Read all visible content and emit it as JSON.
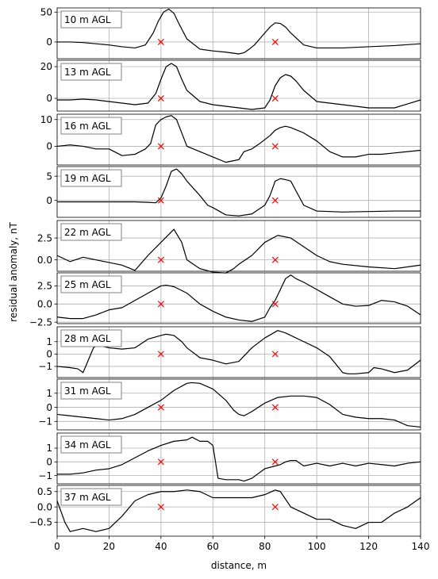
{
  "chart_data": {
    "type": "line",
    "xlabel": "distance, m",
    "ylabel": "residual anomaly, nT",
    "xlim": [
      0,
      140
    ],
    "x_ticks": [
      0,
      20,
      40,
      60,
      80,
      100,
      120,
      140
    ],
    "grid": true,
    "line_color": "#000000",
    "marker_color": "#ff0000",
    "markers_x": [
      40,
      84
    ],
    "panels": [
      {
        "label": "10 m AGL",
        "ylim": [
          -28,
          57
        ],
        "yticks": [
          0,
          50
        ],
        "x": [
          0,
          5,
          10,
          15,
          20,
          25,
          30,
          34,
          37,
          39,
          41,
          43,
          45,
          47,
          50,
          55,
          60,
          65,
          70,
          72,
          74,
          76,
          78,
          80,
          82,
          84,
          86,
          88,
          90,
          95,
          100,
          110,
          120,
          130,
          140
        ],
        "y": [
          0,
          0,
          -1,
          -3,
          -5,
          -8,
          -10,
          -5,
          15,
          35,
          50,
          55,
          48,
          30,
          5,
          -12,
          -15,
          -17,
          -20,
          -18,
          -12,
          -5,
          5,
          15,
          25,
          32,
          31,
          25,
          15,
          -5,
          -10,
          -10,
          -8,
          -6,
          -3
        ]
      },
      {
        "label": "13 m AGL",
        "ylim": [
          -8,
          24
        ],
        "yticks": [
          0,
          20
        ],
        "x": [
          0,
          5,
          10,
          15,
          20,
          25,
          30,
          35,
          38,
          40,
          42,
          44,
          46,
          48,
          50,
          55,
          60,
          65,
          70,
          75,
          80,
          82,
          84,
          86,
          88,
          90,
          92,
          95,
          100,
          110,
          120,
          130,
          140
        ],
        "y": [
          -1,
          -1,
          -0.5,
          -1,
          -2,
          -3,
          -4,
          -3,
          3,
          12,
          20,
          22,
          20,
          12,
          5,
          -2,
          -4,
          -5,
          -6,
          -7,
          -6,
          -1,
          8,
          13,
          15,
          14,
          11,
          5,
          -2,
          -4,
          -6,
          -6,
          -1
        ]
      },
      {
        "label": "16 m AGL",
        "ylim": [
          -7,
          12
        ],
        "yticks": [
          0,
          10
        ],
        "x": [
          0,
          5,
          10,
          15,
          20,
          25,
          30,
          34,
          36,
          38,
          40,
          42,
          44,
          46,
          48,
          50,
          55,
          60,
          65,
          70,
          72,
          75,
          78,
          82,
          84,
          86,
          88,
          90,
          95,
          100,
          105,
          110,
          115,
          120,
          125,
          130,
          140
        ],
        "y": [
          0,
          0.5,
          0,
          -1,
          -1,
          -3.5,
          -3,
          -1,
          1,
          8,
          10,
          11,
          11.5,
          10,
          5,
          0,
          -2,
          -4,
          -6,
          -5,
          -2,
          -1,
          1,
          4,
          6,
          7,
          7.5,
          7,
          5,
          2,
          -2,
          -4,
          -4,
          -3,
          -3,
          -2.5,
          -1.5
        ]
      },
      {
        "label": "19 m AGL",
        "ylim": [
          -3.5,
          7
        ],
        "yticks": [
          0,
          5
        ],
        "x": [
          0,
          10,
          20,
          30,
          35,
          38,
          40,
          42,
          44,
          46,
          48,
          50,
          55,
          58,
          60,
          65,
          70,
          75,
          80,
          82,
          84,
          86,
          88,
          90,
          95,
          100,
          110,
          120,
          130,
          140
        ],
        "y": [
          -0.3,
          -0.3,
          -0.3,
          -0.3,
          -0.4,
          -0.5,
          0.5,
          3,
          6,
          6.5,
          5.5,
          4,
          1,
          -1,
          -1.5,
          -3,
          -3.2,
          -2.8,
          -1,
          1,
          4,
          4.5,
          4.3,
          4,
          -1,
          -2.2,
          -2.4,
          -2.3,
          -2.2,
          -2.2
        ]
      },
      {
        "label": "22 m AGL",
        "ylim": [
          -1.3,
          4.5
        ],
        "yticks": [
          -2.5,
          0,
          2.5
        ],
        "ytick_labels": [
          "",
          "0.0",
          "2.5"
        ],
        "x": [
          0,
          5,
          10,
          15,
          20,
          25,
          30,
          35,
          40,
          45,
          48,
          50,
          55,
          60,
          65,
          68,
          70,
          75,
          80,
          85,
          90,
          95,
          100,
          105,
          110,
          120,
          130,
          140
        ],
        "y": [
          0.5,
          -0.2,
          0.3,
          0,
          -0.3,
          -0.6,
          -1.2,
          0.5,
          2,
          3.5,
          2,
          0,
          -1,
          -1.4,
          -1.5,
          -1,
          -0.5,
          0.5,
          2,
          2.8,
          2.5,
          1.5,
          0.5,
          -0.2,
          -0.5,
          -0.8,
          -1,
          -0.6
        ]
      },
      {
        "label": "25 m AGL",
        "ylim": [
          -2.7,
          4.3
        ],
        "yticks": [
          -2.5,
          0,
          2.5
        ],
        "ytick_labels": [
          "−2.5",
          "0.0",
          "2.5"
        ],
        "x": [
          0,
          5,
          10,
          15,
          20,
          25,
          30,
          35,
          40,
          42,
          45,
          50,
          55,
          60,
          65,
          70,
          75,
          80,
          82,
          84,
          86,
          88,
          90,
          92,
          95,
          100,
          105,
          110,
          115,
          120,
          125,
          130,
          135,
          140
        ],
        "y": [
          -1.8,
          -2,
          -2,
          -1.5,
          -0.8,
          -0.5,
          0.5,
          1.5,
          2.5,
          2.6,
          2.4,
          1.5,
          0,
          -1,
          -1.8,
          -2.2,
          -2.4,
          -1.8,
          -0.5,
          0.5,
          2,
          3.5,
          4,
          3.5,
          3,
          2,
          1,
          0,
          -0.3,
          -0.2,
          0.5,
          0.3,
          -0.3,
          -1.5
        ]
      },
      {
        "label": "28 m AGL",
        "ylim": [
          -1.9,
          2.2
        ],
        "yticks": [
          -1,
          0,
          1
        ],
        "x": [
          0,
          5,
          8,
          10,
          12,
          14,
          16,
          18,
          20,
          25,
          30,
          35,
          40,
          42,
          45,
          48,
          50,
          55,
          60,
          65,
          70,
          75,
          80,
          85,
          88,
          90,
          95,
          100,
          105,
          110,
          112,
          115,
          120,
          122,
          125,
          130,
          135,
          140
        ],
        "y": [
          -1,
          -1.1,
          -1.2,
          -1.5,
          -0.5,
          0.5,
          0.8,
          0.6,
          0.5,
          0.4,
          0.5,
          1.2,
          1.5,
          1.6,
          1.5,
          1,
          0.5,
          -0.3,
          -0.5,
          -0.8,
          -0.6,
          0.5,
          1.3,
          1.9,
          1.7,
          1.5,
          1,
          0.5,
          -0.2,
          -1.5,
          -1.6,
          -1.6,
          -1.5,
          -1.1,
          -1.2,
          -1.5,
          -1.3,
          -0.5
        ]
      },
      {
        "label": "31 m AGL",
        "ylim": [
          -1.6,
          2.0
        ],
        "yticks": [
          -1,
          0,
          1
        ],
        "x": [
          0,
          5,
          10,
          15,
          20,
          25,
          30,
          35,
          40,
          45,
          50,
          52,
          55,
          60,
          65,
          68,
          70,
          72,
          75,
          80,
          85,
          90,
          95,
          100,
          105,
          110,
          115,
          120,
          125,
          130,
          135,
          140
        ],
        "y": [
          -0.5,
          -0.6,
          -0.7,
          -0.8,
          -0.9,
          -0.8,
          -0.5,
          0,
          0.5,
          1.2,
          1.7,
          1.75,
          1.7,
          1.3,
          0.5,
          -0.2,
          -0.5,
          -0.6,
          -0.3,
          0.3,
          0.7,
          0.8,
          0.8,
          0.7,
          0.2,
          -0.5,
          -0.7,
          -0.8,
          -0.8,
          -0.9,
          -1.3,
          -1.4
        ]
      },
      {
        "label": "34 m AGL",
        "ylim": [
          -1.6,
          2.1
        ],
        "yticks": [
          -1,
          0,
          1
        ],
        "x": [
          0,
          5,
          10,
          15,
          20,
          25,
          30,
          35,
          40,
          45,
          50,
          52,
          55,
          58,
          60,
          62,
          65,
          70,
          72,
          75,
          80,
          84,
          86,
          88,
          90,
          92,
          95,
          100,
          105,
          110,
          115,
          120,
          125,
          130,
          135,
          140
        ],
        "y": [
          -0.9,
          -0.9,
          -0.8,
          -0.6,
          -0.5,
          -0.2,
          0.3,
          0.8,
          1.2,
          1.5,
          1.6,
          1.8,
          1.5,
          1.5,
          1.2,
          -1.2,
          -1.3,
          -1.3,
          -1.4,
          -1.2,
          -0.5,
          -0.3,
          -0.2,
          0,
          0.1,
          0.1,
          -0.3,
          -0.1,
          -0.3,
          -0.1,
          -0.3,
          -0.1,
          -0.2,
          -0.3,
          -0.1,
          0
        ]
      },
      {
        "label": "37 m AGL",
        "ylim": [
          -0.95,
          0.7
        ],
        "yticks": [
          -0.5,
          0,
          0.5
        ],
        "ytick_labels": [
          "−0.5",
          "0.0",
          "0.5"
        ],
        "x": [
          0,
          3,
          5,
          10,
          15,
          20,
          25,
          30,
          35,
          40,
          45,
          50,
          55,
          60,
          65,
          70,
          75,
          80,
          84,
          86,
          90,
          95,
          100,
          105,
          110,
          115,
          120,
          125,
          130,
          135,
          140
        ],
        "y": [
          0.2,
          -0.5,
          -0.8,
          -0.7,
          -0.8,
          -0.7,
          -0.3,
          0.2,
          0.4,
          0.5,
          0.5,
          0.55,
          0.5,
          0.3,
          0.3,
          0.3,
          0.3,
          0.4,
          0.55,
          0.5,
          0,
          -0.2,
          -0.4,
          -0.4,
          -0.6,
          -0.7,
          -0.5,
          -0.5,
          -0.2,
          0,
          0.3
        ]
      }
    ]
  }
}
